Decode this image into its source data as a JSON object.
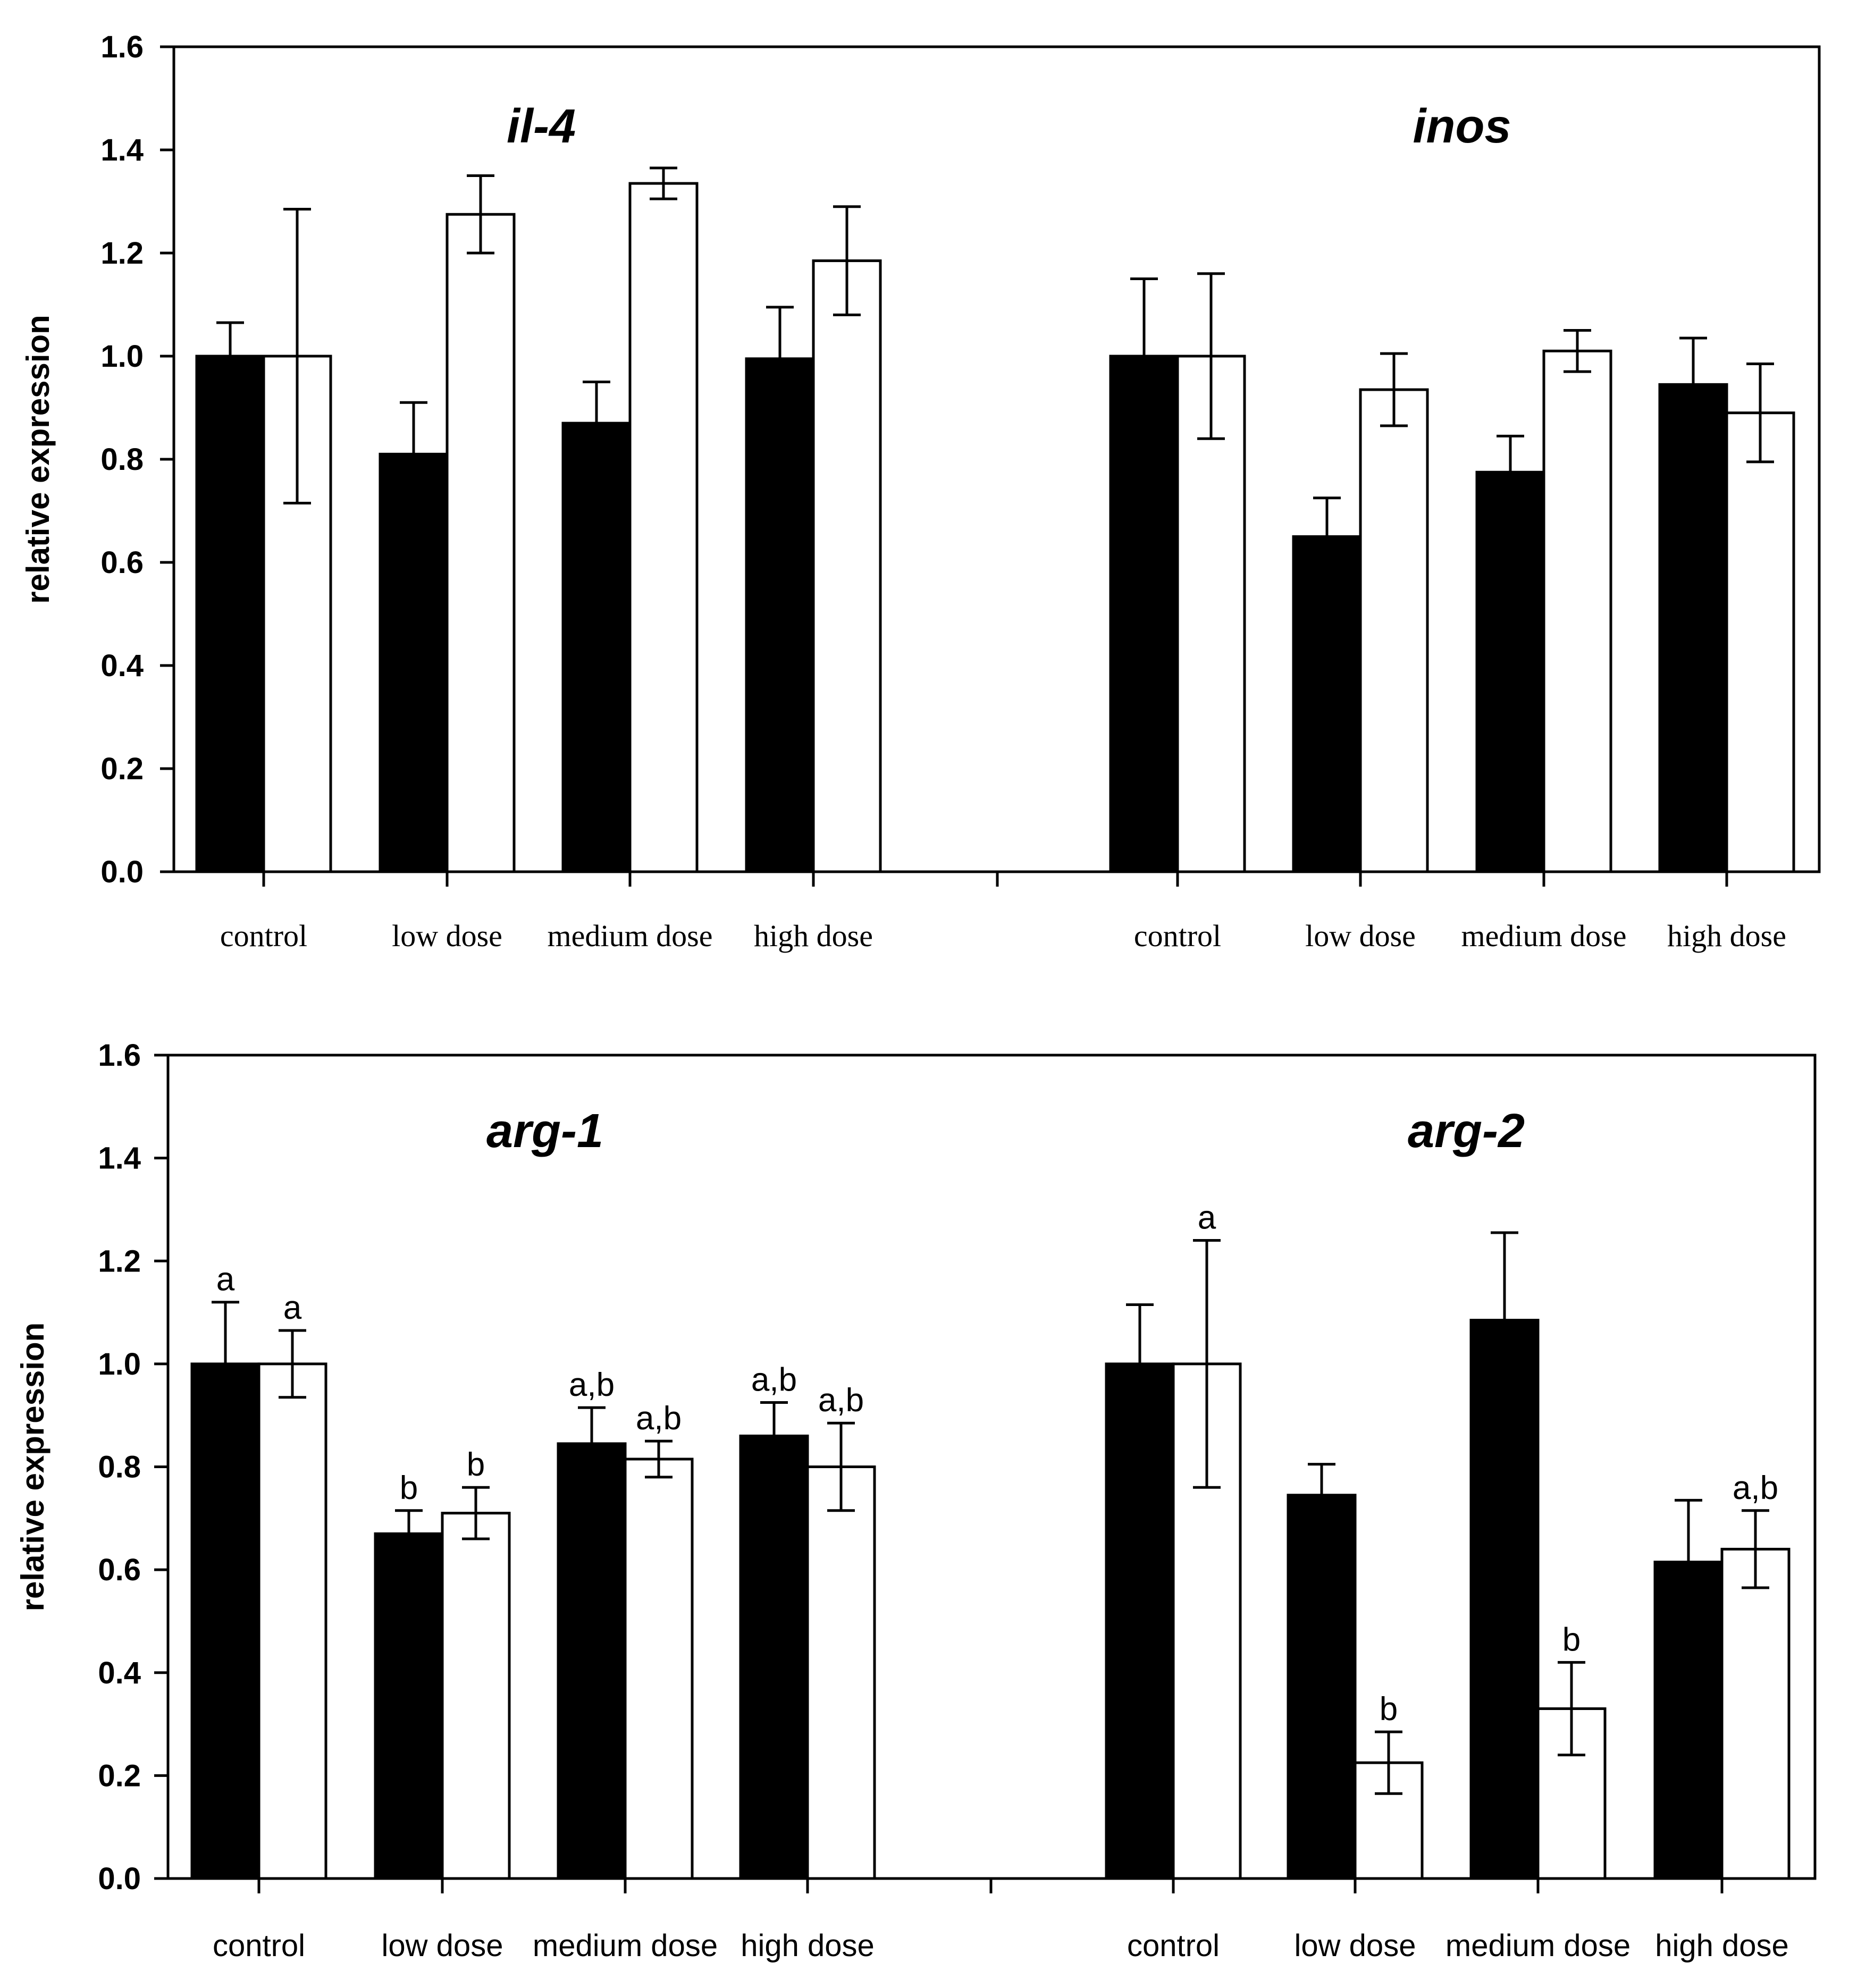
{
  "chart_data": [
    {
      "type": "bar",
      "ylabel": "relative expression",
      "ylim": [
        0,
        1.6
      ],
      "yticks": [
        "0.0",
        "0.2",
        "0.4",
        "0.6",
        "0.8",
        "1.0",
        "1.2",
        "1.4",
        "1.6"
      ],
      "series_colors": [
        "#000000",
        "#ffffff"
      ],
      "groups": [
        {
          "title": "il-4",
          "categories": [
            "control",
            "low dose",
            "medium dose",
            "high dose"
          ],
          "series": [
            {
              "name": "filled",
              "values": [
                1.0,
                0.81,
                0.87,
                0.995
              ],
              "errors": [
                0.065,
                0.1,
                0.08,
                0.1
              ]
            },
            {
              "name": "open",
              "values": [
                1.0,
                1.275,
                1.335,
                1.185
              ],
              "errors": [
                0.285,
                0.075,
                0.03,
                0.105
              ]
            }
          ],
          "annotations": [
            [
              "",
              "",
              "",
              ""
            ],
            [
              "",
              "",
              "",
              ""
            ]
          ]
        },
        {
          "title": "inos",
          "categories": [
            "control",
            "low dose",
            "medium dose",
            "high dose"
          ],
          "series": [
            {
              "name": "filled",
              "values": [
                1.0,
                0.65,
                0.775,
                0.945
              ],
              "errors": [
                0.15,
                0.075,
                0.07,
                0.09
              ]
            },
            {
              "name": "open",
              "values": [
                1.0,
                0.935,
                1.01,
                0.89
              ],
              "errors": [
                0.16,
                0.07,
                0.04,
                0.095
              ]
            }
          ],
          "annotations": [
            [
              "",
              "",
              "",
              ""
            ],
            [
              "",
              "",
              "",
              ""
            ]
          ]
        }
      ]
    },
    {
      "type": "bar",
      "ylabel": "relative expression",
      "ylim": [
        0,
        1.6
      ],
      "yticks": [
        "0.0",
        "0.2",
        "0.4",
        "0.6",
        "0.8",
        "1.0",
        "1.2",
        "1.4",
        "1.6"
      ],
      "series_colors": [
        "#000000",
        "#ffffff"
      ],
      "groups": [
        {
          "title": "arg-1",
          "categories": [
            "control",
            "low dose",
            "medium dose",
            "high dose"
          ],
          "series": [
            {
              "name": "filled",
              "values": [
                1.0,
                0.67,
                0.845,
                0.86
              ],
              "errors": [
                0.12,
                0.045,
                0.07,
                0.065
              ]
            },
            {
              "name": "open",
              "values": [
                1.0,
                0.71,
                0.815,
                0.8
              ],
              "errors": [
                0.065,
                0.05,
                0.035,
                0.085
              ]
            }
          ],
          "annotations": [
            [
              "a",
              "b",
              "a,b",
              "a,b"
            ],
            [
              "a",
              "b",
              "a,b",
              "a,b"
            ]
          ]
        },
        {
          "title": "arg-2",
          "categories": [
            "control",
            "low dose",
            "medium dose",
            "high dose"
          ],
          "series": [
            {
              "name": "filled",
              "values": [
                1.0,
                0.745,
                1.085,
                0.615
              ],
              "errors": [
                0.115,
                0.06,
                0.17,
                0.12
              ]
            },
            {
              "name": "open",
              "values": [
                1.0,
                0.225,
                0.33,
                0.64
              ],
              "errors": [
                0.24,
                0.06,
                0.09,
                0.075
              ]
            }
          ],
          "annotations": [
            [
              "",
              "",
              "",
              ""
            ],
            [
              "a",
              "b",
              "b",
              "a,b"
            ]
          ]
        }
      ]
    }
  ]
}
